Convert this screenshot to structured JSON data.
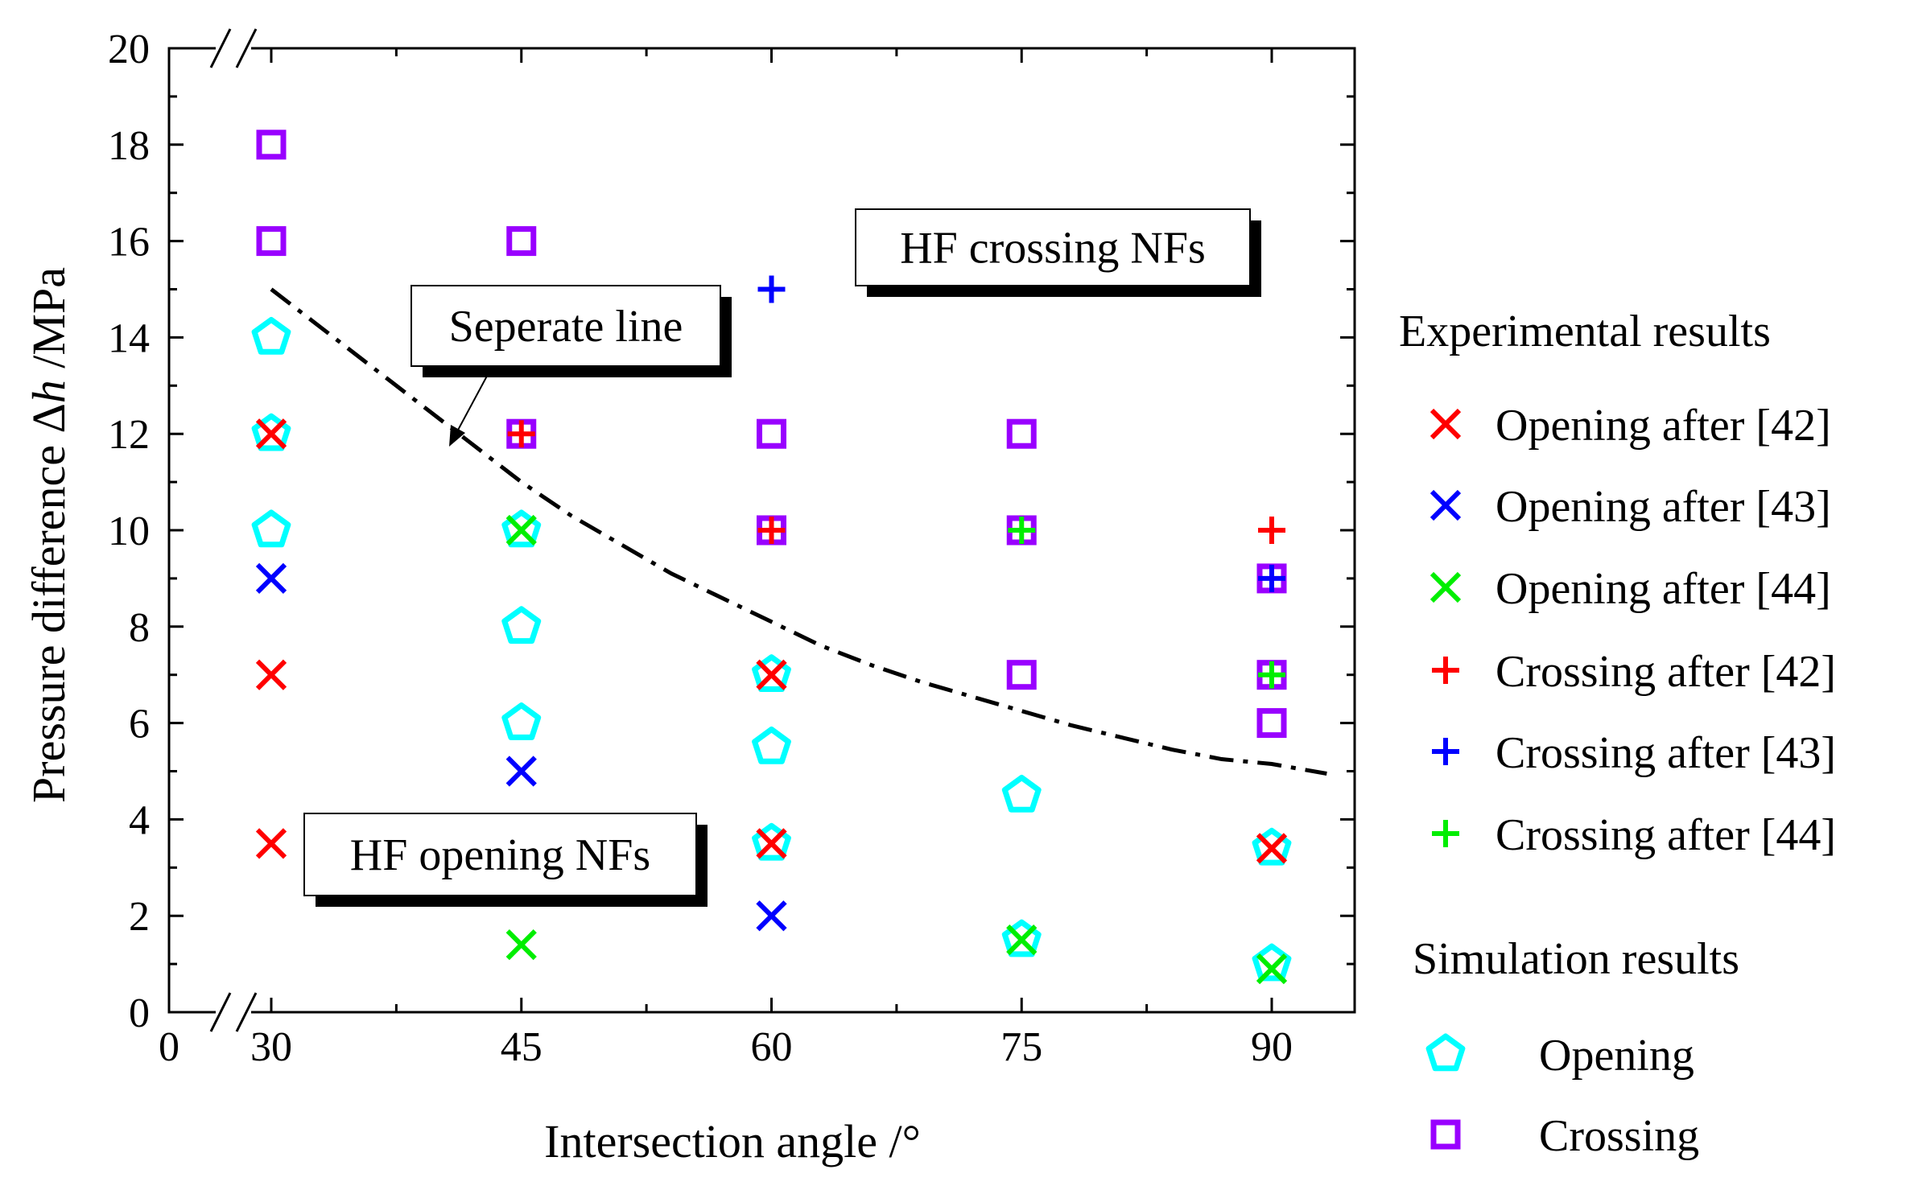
{
  "chart_data": {
    "type": "scatter",
    "xlabel": "Intersection angle /°",
    "ylabel_prefix": "Pressure difference Δ",
    "ylabel_italic": "h",
    "ylabel_suffix": " /MPa",
    "xlim": [
      0,
      95
    ],
    "ylim": [
      0,
      20
    ],
    "x_ticks": [
      {
        "value": 0,
        "label": "0"
      },
      {
        "value": 30,
        "label": "30"
      },
      {
        "value": 45,
        "label": "45"
      },
      {
        "value": 60,
        "label": "60"
      },
      {
        "value": 75,
        "label": "75"
      },
      {
        "value": 90,
        "label": "90"
      }
    ],
    "y_ticks": [
      0,
      2,
      4,
      6,
      8,
      10,
      12,
      14,
      16,
      18,
      20
    ],
    "axis_break": "//",
    "separate_line": {
      "label": "Seperate line",
      "style": "dash-dot",
      "x": [
        30,
        33,
        36,
        39,
        42,
        45,
        48,
        51,
        54,
        57,
        60,
        63,
        66,
        69,
        72,
        75,
        78,
        81,
        84,
        87,
        90,
        93.3
      ],
      "y": [
        15.0,
        14.2,
        13.4,
        12.6,
        11.8,
        11.0,
        10.3,
        9.7,
        9.1,
        8.6,
        8.1,
        7.6,
        7.2,
        6.85,
        6.55,
        6.25,
        5.95,
        5.7,
        5.45,
        5.25,
        5.15,
        4.95
      ]
    },
    "region_labels": {
      "crossing": "HF crossing NFs",
      "opening": "HF opening NFs"
    },
    "legend": {
      "experimental_title": "Experimental results",
      "simulation_title": "Simulation results"
    },
    "series": [
      {
        "name": "Opening after [42]",
        "marker": "x",
        "color": "#ff0000",
        "group": "experimental",
        "points": [
          [
            30,
            12
          ],
          [
            30,
            7
          ],
          [
            30,
            3.5
          ],
          [
            60,
            7
          ],
          [
            60,
            3.5
          ],
          [
            90,
            3.4
          ]
        ]
      },
      {
        "name": "Opening after [43]",
        "marker": "x",
        "color": "#0000ff",
        "group": "experimental",
        "points": [
          [
            30,
            9
          ],
          [
            45,
            5
          ],
          [
            60,
            2
          ]
        ]
      },
      {
        "name": "Opening after [44]",
        "marker": "x",
        "color": "#00ee00",
        "group": "experimental",
        "points": [
          [
            45,
            10
          ],
          [
            45,
            1.4
          ],
          [
            75,
            1.5
          ],
          [
            90,
            0.9
          ]
        ]
      },
      {
        "name": "Crossing after [42]",
        "marker": "plus",
        "color": "#ff0000",
        "group": "experimental",
        "points": [
          [
            45,
            12
          ],
          [
            60,
            10
          ],
          [
            90,
            10
          ]
        ]
      },
      {
        "name": "Crossing after [43]",
        "marker": "plus",
        "color": "#0000ff",
        "group": "experimental",
        "points": [
          [
            60,
            15
          ],
          [
            90,
            9
          ]
        ]
      },
      {
        "name": "Crossing after [44]",
        "marker": "plus",
        "color": "#00ee00",
        "group": "experimental",
        "points": [
          [
            75,
            10
          ],
          [
            90,
            7
          ]
        ]
      },
      {
        "name": "Opening",
        "marker": "pentagon",
        "color": "#00ffff",
        "group": "simulation",
        "points": [
          [
            30,
            14
          ],
          [
            30,
            12
          ],
          [
            30,
            10
          ],
          [
            45,
            10
          ],
          [
            45,
            8
          ],
          [
            45,
            6
          ],
          [
            60,
            7
          ],
          [
            60,
            5.5
          ],
          [
            60,
            3.5
          ],
          [
            75,
            4.5
          ],
          [
            75,
            1.5
          ],
          [
            90,
            3.4
          ],
          [
            90,
            1
          ]
        ]
      },
      {
        "name": "Crossing",
        "marker": "square",
        "color": "#9900ff",
        "group": "simulation",
        "points": [
          [
            30,
            18
          ],
          [
            30,
            16
          ],
          [
            45,
            16
          ],
          [
            45,
            12
          ],
          [
            60,
            12
          ],
          [
            60,
            10
          ],
          [
            75,
            12
          ],
          [
            75,
            10
          ],
          [
            75,
            7
          ],
          [
            90,
            9
          ],
          [
            90,
            7
          ],
          [
            90,
            6
          ]
        ]
      }
    ]
  }
}
